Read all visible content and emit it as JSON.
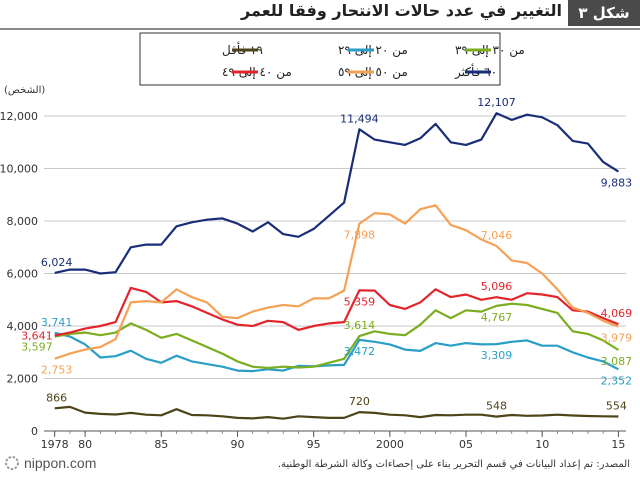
{
  "header": {
    "title": "التغيير في عدد حالات الانتحار وفقا للعمر",
    "figure_label": "شكل ٣"
  },
  "footer": {
    "logo_text": "nippon.com",
    "source": "المصدر: تم إعداد البيانات في قسم التحرير بناء على إحصاءات وكالة الشرطة الوطنية."
  },
  "chart_data": {
    "type": "line",
    "unit_label": "(الشخص)",
    "x": [
      1978,
      1979,
      1980,
      1981,
      1982,
      1983,
      1984,
      1985,
      1986,
      1987,
      1988,
      1989,
      1990,
      1991,
      1992,
      1993,
      1994,
      1995,
      1996,
      1997,
      1998,
      1999,
      2000,
      2001,
      2002,
      2003,
      2004,
      2005,
      2006,
      2007,
      2008,
      2009,
      2010,
      2011,
      2012,
      2013,
      2014,
      2015
    ],
    "x_ticks": [
      {
        "value": 1978,
        "label": "1978"
      },
      {
        "value": 1980,
        "label": "80"
      },
      {
        "value": 1985,
        "label": "85"
      },
      {
        "value": 1990,
        "label": "90"
      },
      {
        "value": 1995,
        "label": "95"
      },
      {
        "value": 2000,
        "label": "2000"
      },
      {
        "value": 2005,
        "label": "05"
      },
      {
        "value": 2010,
        "label": "10"
      },
      {
        "value": 2015,
        "label": "15"
      }
    ],
    "y_ticks": [
      {
        "value": 0,
        "label": "0"
      },
      {
        "value": 2000,
        "label": "2,000"
      },
      {
        "value": 4000,
        "label": "4,000"
      },
      {
        "value": 6000,
        "label": "6,000"
      },
      {
        "value": 8000,
        "label": "8,000"
      },
      {
        "value": 10000,
        "label": "10,000"
      },
      {
        "value": 12000,
        "label": "12,000"
      }
    ],
    "xlim": [
      1977.3,
      2015.5
    ],
    "ylim": [
      0,
      12800
    ],
    "grid": true,
    "series": [
      {
        "name": "١٩ فأقل",
        "color": "#4d4419",
        "values": [
          866,
          920,
          700,
          650,
          630,
          690,
          620,
          600,
          830,
          610,
          600,
          560,
          500,
          480,
          530,
          470,
          560,
          530,
          500,
          500,
          720,
          690,
          620,
          600,
          530,
          610,
          600,
          620,
          620,
          548,
          610,
          580,
          590,
          620,
          590,
          570,
          560,
          554
        ]
      },
      {
        "name": "من ٢٠ إلى ٢٩",
        "color": "#2a9ec7",
        "values": [
          3741,
          3600,
          3300,
          2800,
          2850,
          3060,
          2750,
          2600,
          2870,
          2650,
          2550,
          2450,
          2300,
          2280,
          2350,
          2300,
          2480,
          2460,
          2500,
          2520,
          3472,
          3400,
          3300,
          3100,
          3050,
          3350,
          3250,
          3350,
          3300,
          3309,
          3400,
          3450,
          3250,
          3250,
          3000,
          2800,
          2650,
          2352
        ]
      },
      {
        "name": "من ٣٠ إلى ٣٩",
        "color": "#7aad1f",
        "values": [
          3597,
          3700,
          3750,
          3650,
          3750,
          4100,
          3850,
          3550,
          3700,
          3450,
          3200,
          2950,
          2650,
          2450,
          2400,
          2450,
          2420,
          2450,
          2600,
          2750,
          3614,
          3800,
          3700,
          3650,
          4050,
          4600,
          4300,
          4600,
          4550,
          4767,
          4850,
          4800,
          4650,
          4500,
          3800,
          3700,
          3450,
          3087
        ]
      },
      {
        "name": "من ٤٠ إلى ٤٩",
        "color": "#e3242b",
        "values": [
          3641,
          3750,
          3900,
          4000,
          4150,
          5450,
          5300,
          4900,
          4950,
          4750,
          4500,
          4250,
          4050,
          4000,
          4200,
          4150,
          3850,
          4000,
          4100,
          4150,
          5359,
          5350,
          4800,
          4650,
          4900,
          5400,
          5100,
          5200,
          5000,
          5096,
          5000,
          5250,
          5200,
          5100,
          4600,
          4550,
          4300,
          4069
        ]
      },
      {
        "name": "من ٥٠ إلى ٥٩",
        "color": "#f5a155",
        "values": [
          2753,
          2950,
          3100,
          3200,
          3500,
          4900,
          4950,
          4900,
          5400,
          5100,
          4900,
          4350,
          4300,
          4550,
          4700,
          4800,
          4750,
          5050,
          5050,
          5350,
          7898,
          8300,
          8250,
          7900,
          8450,
          8600,
          7850,
          7650,
          7300,
          7046,
          6500,
          6400,
          6000,
          5400,
          4700,
          4500,
          4200,
          3979
        ]
      },
      {
        "name": "٦٠ فأكثر",
        "color": "#1a2d78",
        "values": [
          6024,
          6150,
          6150,
          6000,
          6050,
          7000,
          7100,
          7100,
          7800,
          7950,
          8050,
          8100,
          7900,
          7600,
          7950,
          7500,
          7400,
          7700,
          8200,
          8700,
          11494,
          11100,
          11000,
          10900,
          11150,
          11700,
          11000,
          10900,
          11100,
          12107,
          11850,
          12050,
          11950,
          11650,
          11050,
          10950,
          10250,
          9883
        ]
      }
    ],
    "legend": {
      "placement": "top",
      "rows": [
        [
          "من ٣٠ إلى ٣٩",
          "من ٢٠ إلى ٢٩",
          "١٩ فأقل"
        ],
        [
          "٦٠ فأكثر",
          "من ٥٠ إلى ٥٩",
          "من ٤٠ إلى ٤٩"
        ]
      ]
    },
    "annotations": [
      {
        "series": "٦٠ فأكثر",
        "x": 1978,
        "y": 6024,
        "label": "6,024",
        "pos": "above"
      },
      {
        "series": "٦٠ فأكثر",
        "x": 1998,
        "y": 11494,
        "label": "11,494",
        "pos": "above"
      },
      {
        "series": "٦٠ فأكثر",
        "x": 2007,
        "y": 12107,
        "label": "12,107",
        "pos": "above"
      },
      {
        "series": "٦٠ فأكثر",
        "x": 2015,
        "y": 9883,
        "label": "9,883",
        "pos": "below"
      },
      {
        "series": "من ٥٠ إلى ٥٩",
        "x": 1978,
        "y": 2753,
        "label": "2,753",
        "pos": "below"
      },
      {
        "series": "من ٥٠ إلى ٥٩",
        "x": 1998,
        "y": 7898,
        "label": "7,898",
        "pos": "below"
      },
      {
        "series": "من ٥٠ إلى ٥٩",
        "x": 2007,
        "y": 7046,
        "label": "7,046",
        "pos": "above"
      },
      {
        "series": "من ٥٠ إلى ٥٩",
        "x": 2015,
        "y": 3979,
        "label": "3,979",
        "pos": "below"
      },
      {
        "series": "من ٤٠ إلى ٤٩",
        "x": 1978,
        "y": 3641,
        "label": "3,641",
        "pos": "left"
      },
      {
        "series": "من ٤٠ إلى ٤٩",
        "x": 1998,
        "y": 5359,
        "label": "5,359",
        "pos": "below"
      },
      {
        "series": "من ٤٠ إلى ٤٩",
        "x": 2007,
        "y": 5096,
        "label": "5,096",
        "pos": "above"
      },
      {
        "series": "من ٤٠ إلى ٤٩",
        "x": 2015,
        "y": 4069,
        "label": "4,069",
        "pos": "above"
      },
      {
        "series": "من ٢٠ إلى ٢٩",
        "x": 1978,
        "y": 3741,
        "label": "3,741",
        "pos": "above"
      },
      {
        "series": "من ٢٠ إلى ٢٩",
        "x": 1998,
        "y": 3472,
        "label": "3,472",
        "pos": "below"
      },
      {
        "series": "من ٢٠ إلى ٢٩",
        "x": 2007,
        "y": 3309,
        "label": "3,309",
        "pos": "below"
      },
      {
        "series": "من ٢٠ إلى ٢٩",
        "x": 2015,
        "y": 2352,
        "label": "2,352",
        "pos": "below"
      },
      {
        "series": "من ٣٠ إلى ٣٩",
        "x": 1978,
        "y": 3597,
        "label": "3,597",
        "pos": "left-below"
      },
      {
        "series": "من ٣٠ إلى ٣٩",
        "x": 1998,
        "y": 3614,
        "label": "3,614",
        "pos": "above"
      },
      {
        "series": "من ٣٠ إلى ٣٩",
        "x": 2007,
        "y": 4767,
        "label": "4,767",
        "pos": "below"
      },
      {
        "series": "من ٣٠ إلى ٣٩",
        "x": 2015,
        "y": 3087,
        "label": "3,087",
        "pos": "below"
      },
      {
        "series": "١٩ فأقل",
        "x": 1978,
        "y": 866,
        "label": "866",
        "pos": "above"
      },
      {
        "series": "١٩ فأقل",
        "x": 1998,
        "y": 720,
        "label": "720",
        "pos": "above"
      },
      {
        "series": "١٩ فأقل",
        "x": 2007,
        "y": 548,
        "label": "548",
        "pos": "above"
      },
      {
        "series": "١٩ فأقل",
        "x": 2015,
        "y": 554,
        "label": "554",
        "pos": "above"
      }
    ]
  }
}
